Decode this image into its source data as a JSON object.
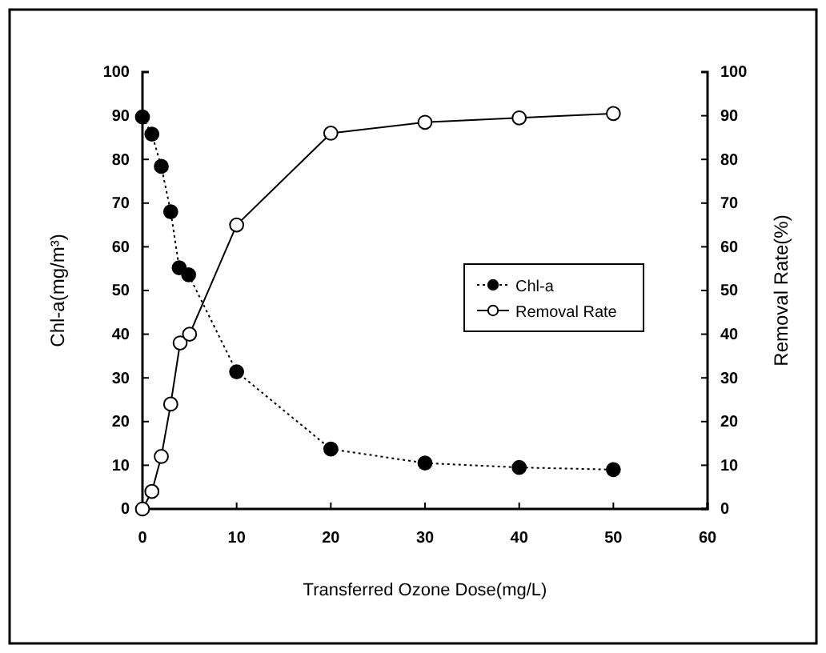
{
  "chart_data": {
    "type": "line",
    "xlabel": "Transferred Ozone Dose(mg/L)",
    "ylabel": "Chl-a(mg/m³)",
    "y2label": "Removal Rate(%)",
    "xlim": [
      0,
      60
    ],
    "xticks": [
      0,
      10,
      20,
      30,
      40,
      50,
      60
    ],
    "ylim": [
      0,
      100
    ],
    "yticks": [
      0,
      10,
      20,
      30,
      40,
      50,
      60,
      70,
      80,
      90,
      100
    ],
    "y2lim": [
      0,
      100
    ],
    "y2ticks": [
      0,
      10,
      20,
      30,
      40,
      50,
      60,
      70,
      80,
      90,
      100
    ],
    "grid": false,
    "legend": "right",
    "series": [
      {
        "name": "Chl-a",
        "color": "#000000",
        "marker": "circle",
        "line_style": "dotted",
        "x": [
          0,
          1,
          2,
          3,
          3.9,
          4.9,
          10,
          20,
          30,
          40,
          50
        ],
        "values": [
          89.7,
          85.8,
          78.4,
          68,
          55.2,
          53.6,
          31.4,
          13.7,
          10.5,
          9.5,
          9
        ]
      },
      {
        "name": "Removal Rate",
        "color": "#000000",
        "marker": "circle",
        "line_style": "solid",
        "axis": "y2",
        "x": [
          0,
          1,
          2,
          3,
          4,
          5,
          10,
          20,
          30,
          40,
          50
        ],
        "values": [
          0,
          4,
          12,
          24,
          38,
          40,
          65,
          86,
          88.5,
          89.5,
          90.5
        ]
      }
    ]
  }
}
